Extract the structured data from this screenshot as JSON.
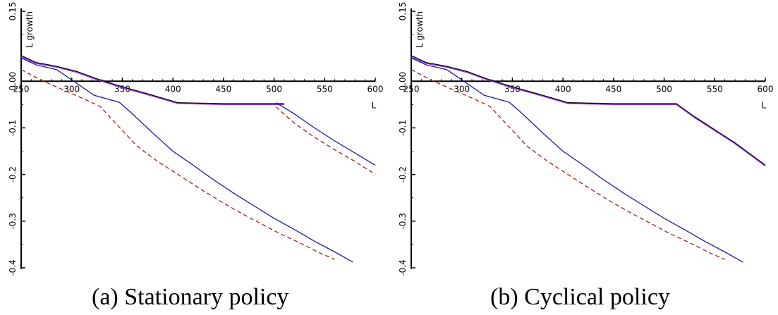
{
  "chart_data": [
    {
      "type": "line",
      "caption": "(a) Stationary policy",
      "xlabel": "L",
      "ylabel": "L growth",
      "xlim": [
        250,
        600
      ],
      "ylim": [
        -0.4,
        0.15
      ],
      "xticks": [
        250,
        300,
        350,
        400,
        450,
        500,
        550,
        600
      ],
      "yticks": [
        0.15,
        "0.00",
        -0.1,
        -0.2,
        -0.3,
        -0.4
      ],
      "ytick_values": [
        0.15,
        0.0,
        -0.1,
        -0.2,
        -0.3,
        -0.4
      ],
      "series": [
        {
          "color": "#000000",
          "dash": "solid",
          "x": [
            250,
            265,
            285,
            305,
            325,
            350,
            375,
            405,
            450,
            500,
            510
          ],
          "y": [
            0.055,
            0.04,
            0.032,
            0.021,
            0.005,
            -0.012,
            -0.027,
            -0.046,
            -0.048,
            -0.048,
            -0.048
          ]
        },
        {
          "color": "#8b2be2",
          "dash": "solid",
          "x": [
            250,
            265,
            285,
            305,
            325,
            350,
            375,
            405,
            450,
            500,
            510
          ],
          "y": [
            0.052,
            0.038,
            0.03,
            0.019,
            0.003,
            -0.014,
            -0.029,
            -0.048,
            -0.05,
            -0.05,
            -0.05
          ]
        },
        {
          "color": "#1a1aa6",
          "dash": "solid",
          "x": [
            250,
            265,
            285,
            300,
            322,
            347,
            360,
            380,
            400,
            420,
            440,
            460,
            480,
            500,
            520,
            540,
            560,
            578
          ],
          "y": [
            0.05,
            0.035,
            0.025,
            0.003,
            -0.03,
            -0.045,
            -0.07,
            -0.111,
            -0.15,
            -0.18,
            -0.211,
            -0.24,
            -0.267,
            -0.294,
            -0.318,
            -0.343,
            -0.366,
            -0.388
          ]
        },
        {
          "color": "#a0201a",
          "dash": "dashed",
          "x": [
            250,
            270,
            290,
            310,
            328,
            345,
            365,
            385,
            405,
            425,
            445,
            465,
            485,
            505,
            525,
            545,
            560
          ],
          "y": [
            0.025,
            0.002,
            -0.017,
            -0.036,
            -0.054,
            -0.094,
            -0.14,
            -0.172,
            -0.2,
            -0.228,
            -0.255,
            -0.28,
            -0.303,
            -0.326,
            -0.346,
            -0.368,
            -0.382
          ]
        },
        {
          "color": "#1a1aa6",
          "dash": "solid",
          "x": [
            502,
            520,
            540,
            560,
            580,
            600
          ],
          "y": [
            -0.046,
            -0.07,
            -0.1,
            -0.128,
            -0.154,
            -0.18
          ]
        },
        {
          "color": "#a0201a",
          "dash": "dashed",
          "x": [
            502,
            520,
            540,
            560,
            580,
            600
          ],
          "y": [
            -0.055,
            -0.09,
            -0.12,
            -0.147,
            -0.172,
            -0.2
          ]
        }
      ]
    },
    {
      "type": "line",
      "caption": "(b) Cyclical policy",
      "xlabel": "L",
      "ylabel": "L growth",
      "xlim": [
        250,
        600
      ],
      "ylim": [
        -0.4,
        0.15
      ],
      "xticks": [
        250,
        300,
        350,
        400,
        450,
        500,
        550,
        600
      ],
      "yticks": [
        0.15,
        "0.00",
        -0.1,
        -0.2,
        -0.3,
        -0.4
      ],
      "ytick_values": [
        0.15,
        0.0,
        -0.1,
        -0.2,
        -0.3,
        -0.4
      ],
      "series": [
        {
          "color": "#000000",
          "dash": "solid",
          "x": [
            250,
            265,
            285,
            305,
            325,
            350,
            375,
            405,
            450,
            500,
            512,
            530,
            550,
            570,
            600
          ],
          "y": [
            0.055,
            0.04,
            0.032,
            0.021,
            0.005,
            -0.012,
            -0.027,
            -0.046,
            -0.048,
            -0.048,
            -0.048,
            -0.076,
            -0.104,
            -0.132,
            -0.18
          ]
        },
        {
          "color": "#8b2be2",
          "dash": "solid",
          "x": [
            250,
            265,
            285,
            305,
            325,
            350,
            375,
            405,
            450,
            500,
            512,
            530,
            550,
            570,
            600
          ],
          "y": [
            0.052,
            0.038,
            0.03,
            0.019,
            0.003,
            -0.014,
            -0.029,
            -0.048,
            -0.05,
            -0.05,
            -0.05,
            -0.078,
            -0.106,
            -0.134,
            -0.182
          ]
        },
        {
          "color": "#1a1aa6",
          "dash": "solid",
          "x": [
            250,
            265,
            285,
            300,
            322,
            347,
            360,
            380,
            400,
            420,
            440,
            460,
            480,
            500,
            520,
            540,
            560,
            578
          ],
          "y": [
            0.05,
            0.035,
            0.025,
            0.003,
            -0.03,
            -0.045,
            -0.07,
            -0.111,
            -0.15,
            -0.18,
            -0.211,
            -0.24,
            -0.267,
            -0.294,
            -0.318,
            -0.343,
            -0.366,
            -0.388
          ]
        },
        {
          "color": "#a0201a",
          "dash": "dashed",
          "x": [
            250,
            270,
            290,
            310,
            328,
            345,
            365,
            385,
            405,
            425,
            445,
            465,
            485,
            505,
            525,
            545,
            560
          ],
          "y": [
            0.025,
            0.002,
            -0.017,
            -0.036,
            -0.054,
            -0.094,
            -0.14,
            -0.172,
            -0.2,
            -0.228,
            -0.255,
            -0.28,
            -0.303,
            -0.326,
            -0.346,
            -0.368,
            -0.382
          ]
        }
      ]
    }
  ]
}
